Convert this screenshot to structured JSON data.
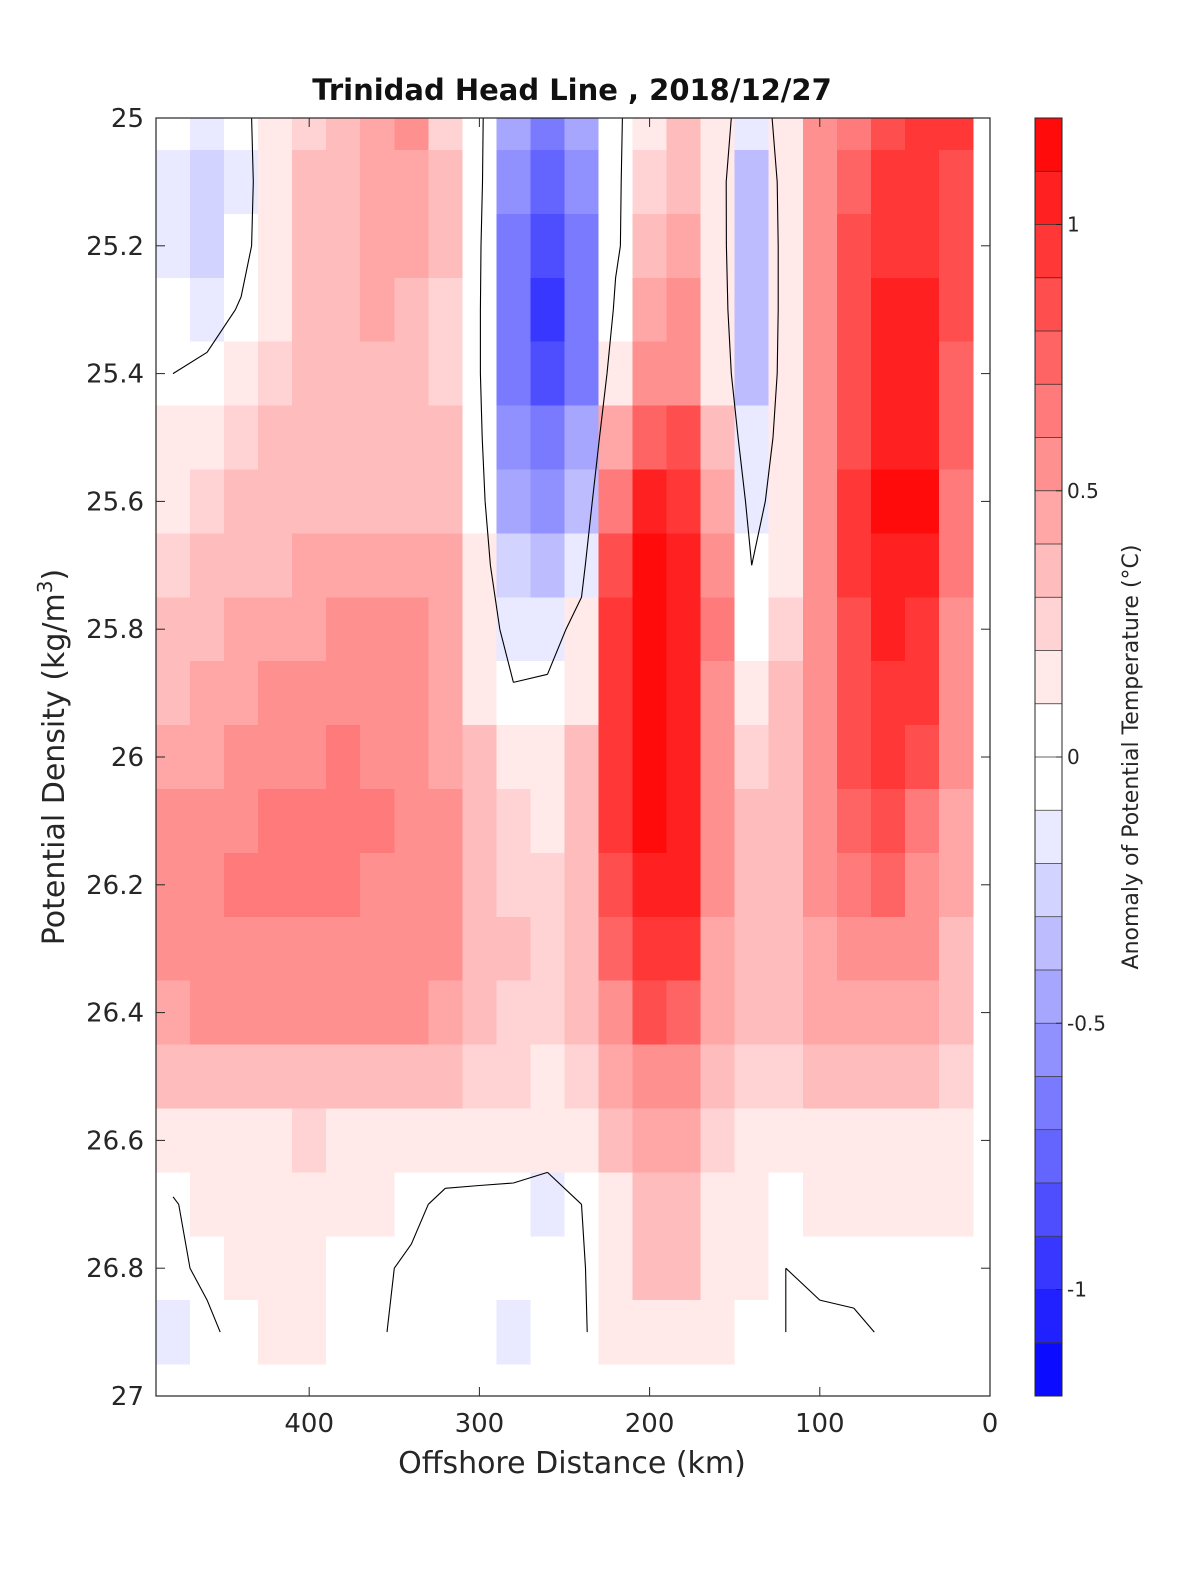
{
  "chart_data": {
    "type": "heatmap",
    "title": "Trinidad Head Line , 2018/12/27",
    "xlabel": "Offshore Distance (km)",
    "ylabel_parts": [
      "Potential Density (kg/m",
      "3",
      ")"
    ],
    "x_reversed": true,
    "xlim": [
      490,
      0
    ],
    "xticks": [
      400,
      300,
      200,
      100,
      0
    ],
    "xticklabels": [
      "400",
      "300",
      "200",
      "100",
      "0"
    ],
    "y_reversed": true,
    "ylim": [
      25,
      27
    ],
    "yticks": [
      25,
      25.2,
      25.4,
      25.6,
      25.8,
      26,
      26.2,
      26.4,
      26.6,
      26.8,
      27
    ],
    "yticklabels": [
      "25",
      "25.2",
      "25.4",
      "25.6",
      "25.8",
      "26",
      "26.2",
      "26.4",
      "26.6",
      "26.8",
      "27"
    ],
    "grid": false,
    "colorbar": {
      "label": "Anomaly of Potential Temperature (°C)",
      "range": [
        -1.2,
        1.2
      ],
      "step": 0.1,
      "ticks": [
        1,
        0.5,
        0,
        -0.5,
        -1
      ],
      "ticklabels": [
        "1",
        "0.5",
        "0",
        "-0.5",
        "-1"
      ],
      "colormap": "blue-white-red",
      "low_color": "#0000ff",
      "high_color": "#ff0000"
    },
    "contour_levels": [
      0
    ],
    "grid_x": [
      480,
      460,
      440,
      420,
      400,
      380,
      360,
      340,
      320,
      300,
      280,
      260,
      240,
      220,
      200,
      180,
      160,
      140,
      120,
      100,
      80,
      60,
      40,
      20
    ],
    "grid_y": [
      25,
      25.1,
      25.2,
      25.3,
      25.4,
      25.5,
      25.6,
      25.7,
      25.8,
      25.9,
      26,
      26.1,
      26.2,
      26.3,
      26.4,
      26.5,
      26.6,
      26.7,
      26.8,
      26.9
    ],
    "values": [
      [
        -0.05,
        -0.2,
        -0.08,
        0.18,
        0.28,
        0.38,
        0.48,
        0.5,
        0.28,
        0.05,
        -0.4,
        -0.6,
        -0.4,
        -0.05,
        0.2,
        0.3,
        0.1,
        -0.15,
        0.1,
        0.5,
        0.7,
        0.85,
        0.95,
        0.9
      ],
      [
        -0.1,
        -0.25,
        -0.1,
        0.18,
        0.3,
        0.38,
        0.48,
        0.45,
        0.3,
        0.05,
        -0.5,
        -0.75,
        -0.5,
        -0.05,
        0.25,
        0.35,
        0.1,
        -0.3,
        0.1,
        0.55,
        0.75,
        0.9,
        0.95,
        0.85
      ],
      [
        -0.1,
        -0.22,
        -0.08,
        0.18,
        0.3,
        0.38,
        0.45,
        0.42,
        0.3,
        0.03,
        -0.6,
        -0.85,
        -0.65,
        -0.05,
        0.3,
        0.4,
        0.12,
        -0.35,
        0.1,
        0.55,
        0.8,
        0.95,
        0.95,
        0.8
      ],
      [
        -0.05,
        -0.1,
        0.02,
        0.2,
        0.3,
        0.35,
        0.4,
        0.38,
        0.28,
        0.02,
        -0.65,
        -0.95,
        -0.7,
        0.05,
        0.4,
        0.5,
        0.15,
        -0.35,
        0.1,
        0.55,
        0.8,
        1.0,
        1.0,
        0.8
      ],
      [
        0.0,
        0.05,
        0.15,
        0.25,
        0.3,
        0.32,
        0.35,
        0.35,
        0.28,
        0.02,
        -0.65,
        -0.85,
        -0.6,
        0.2,
        0.55,
        0.6,
        0.2,
        -0.3,
        0.1,
        0.55,
        0.8,
        1.05,
        1.05,
        0.75
      ],
      [
        0.1,
        0.18,
        0.28,
        0.3,
        0.32,
        0.33,
        0.33,
        0.33,
        0.3,
        0.05,
        -0.55,
        -0.7,
        -0.45,
        0.4,
        0.75,
        0.8,
        0.3,
        -0.2,
        0.12,
        0.55,
        0.85,
        1.1,
        1.1,
        0.75
      ],
      [
        0.18,
        0.25,
        0.3,
        0.34,
        0.35,
        0.35,
        0.35,
        0.36,
        0.34,
        0.08,
        -0.4,
        -0.5,
        -0.3,
        0.65,
        1.0,
        0.95,
        0.45,
        -0.1,
        0.15,
        0.6,
        0.9,
        1.15,
        1.15,
        0.7
      ],
      [
        0.25,
        0.3,
        0.35,
        0.38,
        0.4,
        0.42,
        0.42,
        0.45,
        0.42,
        0.12,
        -0.25,
        -0.3,
        -0.1,
        0.8,
        1.15,
        1.05,
        0.6,
        0.0,
        0.2,
        0.6,
        0.9,
        1.05,
        1.1,
        0.65
      ],
      [
        0.3,
        0.35,
        0.4,
        0.45,
        0.48,
        0.5,
        0.5,
        0.5,
        0.45,
        0.15,
        -0.1,
        -0.12,
        0.1,
        0.9,
        1.2,
        1.1,
        0.65,
        0.08,
        0.25,
        0.6,
        0.88,
        1.0,
        0.95,
        0.6
      ],
      [
        0.35,
        0.4,
        0.45,
        0.5,
        0.55,
        0.58,
        0.55,
        0.52,
        0.45,
        0.2,
        0.02,
        0.05,
        0.2,
        0.95,
        1.25,
        1.1,
        0.6,
        0.15,
        0.3,
        0.6,
        0.85,
        0.95,
        0.9,
        0.55
      ],
      [
        0.45,
        0.48,
        0.52,
        0.56,
        0.6,
        0.62,
        0.6,
        0.55,
        0.48,
        0.3,
        0.15,
        0.12,
        0.3,
        0.95,
        1.25,
        1.1,
        0.55,
        0.25,
        0.35,
        0.6,
        0.8,
        0.9,
        0.8,
        0.5
      ],
      [
        0.55,
        0.58,
        0.6,
        0.62,
        0.65,
        0.65,
        0.62,
        0.58,
        0.52,
        0.35,
        0.22,
        0.2,
        0.35,
        0.9,
        1.2,
        1.05,
        0.55,
        0.3,
        0.38,
        0.58,
        0.75,
        0.82,
        0.7,
        0.45
      ],
      [
        0.58,
        0.6,
        0.62,
        0.62,
        0.62,
        0.62,
        0.6,
        0.58,
        0.55,
        0.38,
        0.28,
        0.25,
        0.38,
        0.85,
        1.1,
        1.0,
        0.5,
        0.32,
        0.38,
        0.55,
        0.68,
        0.72,
        0.6,
        0.4
      ],
      [
        0.55,
        0.58,
        0.6,
        0.6,
        0.6,
        0.6,
        0.58,
        0.55,
        0.52,
        0.38,
        0.3,
        0.28,
        0.38,
        0.75,
        0.95,
        0.9,
        0.48,
        0.32,
        0.36,
        0.48,
        0.58,
        0.6,
        0.5,
        0.35
      ],
      [
        0.48,
        0.5,
        0.52,
        0.52,
        0.52,
        0.52,
        0.5,
        0.5,
        0.48,
        0.35,
        0.28,
        0.28,
        0.35,
        0.6,
        0.8,
        0.75,
        0.42,
        0.3,
        0.32,
        0.4,
        0.48,
        0.48,
        0.4,
        0.3
      ],
      [
        0.3,
        0.32,
        0.34,
        0.35,
        0.35,
        0.35,
        0.33,
        0.33,
        0.3,
        0.28,
        0.22,
        0.2,
        0.25,
        0.45,
        0.6,
        0.55,
        0.32,
        0.22,
        0.25,
        0.3,
        0.35,
        0.35,
        0.3,
        0.25
      ],
      [
        0.15,
        0.15,
        0.18,
        0.2,
        0.22,
        0.2,
        0.18,
        0.17,
        0.15,
        0.12,
        0.1,
        0.1,
        0.15,
        0.35,
        0.45,
        0.42,
        0.25,
        0.15,
        0.12,
        0.15,
        0.2,
        0.2,
        0.18,
        0.15
      ],
      [
        -0.02,
        0.1,
        0.12,
        0.15,
        0.15,
        0.12,
        0.1,
        0.05,
        -0.05,
        -0.05,
        -0.05,
        -0.1,
        0.0,
        0.2,
        0.35,
        0.32,
        0.2,
        0.1,
        0.08,
        0.1,
        0.12,
        0.15,
        0.12,
        0.1
      ],
      [
        -0.05,
        0.05,
        0.12,
        0.15,
        0.12,
        0.08,
        0.03,
        -0.03,
        -0.08,
        -0.05,
        -0.08,
        -0.08,
        -0.02,
        0.15,
        0.3,
        0.3,
        0.2,
        0.1,
        0.0,
        0.02,
        0.05,
        0.08,
        0.08,
        0.05
      ],
      [
        -0.1,
        -0.05,
        0.08,
        0.12,
        0.12,
        0.05,
        0.02,
        -0.05,
        -0.08,
        -0.05,
        -0.1,
        -0.05,
        -0.02,
        0.1,
        0.15,
        0.12,
        0.1,
        0.05,
        0.0,
        -0.02,
        -0.03,
        0.02,
        0.05,
        0.02
      ]
    ]
  }
}
